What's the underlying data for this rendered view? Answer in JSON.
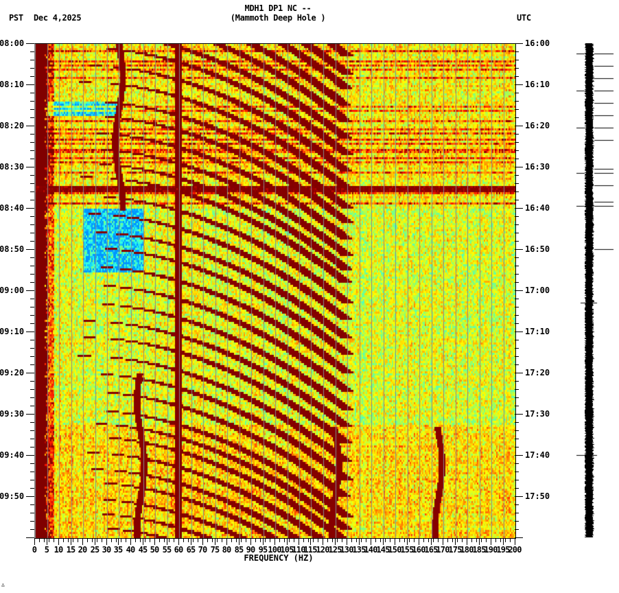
{
  "header": {
    "title_line1": "MDH1 DP1 NC --",
    "title_line2": "(Mammoth Deep Hole )",
    "tz_left": "PST",
    "date": "Dec 4,2025",
    "tz_right": "UTC"
  },
  "footer": {
    "mark": "∴"
  },
  "colors": {
    "low": "#00a0ff",
    "cyan": "#33ffee",
    "green": "#99ff66",
    "yellow": "#ffff00",
    "orange": "#ff9900",
    "red": "#ff1100",
    "high": "#800000",
    "gridline": "#888888"
  },
  "chart_data": {
    "type": "heatmap",
    "title": "MDH1 DP1 NC -- (Mammoth Deep Hole )",
    "subtitle": "Dec 4,2025",
    "xlabel": "FREQUENCY (HZ)",
    "ylabel_left": "PST",
    "ylabel_right": "UTC",
    "xlim": [
      0,
      200
    ],
    "x_ticks": [
      0,
      5,
      10,
      15,
      20,
      25,
      30,
      35,
      40,
      45,
      50,
      55,
      60,
      65,
      70,
      75,
      80,
      85,
      90,
      95,
      100,
      105,
      110,
      115,
      120,
      125,
      130,
      135,
      140,
      145,
      150,
      155,
      160,
      165,
      170,
      175,
      180,
      185,
      190,
      195,
      200
    ],
    "y_ticks_left": [
      "08:00",
      "08:10",
      "08:20",
      "08:30",
      "08:40",
      "08:50",
      "09:00",
      "09:10",
      "09:20",
      "09:30",
      "09:40",
      "09:50"
    ],
    "y_ticks_right": [
      "16:00",
      "16:10",
      "16:20",
      "16:30",
      "16:40",
      "16:50",
      "17:00",
      "17:10",
      "17:20",
      "17:30",
      "17:40",
      "17:50"
    ],
    "time_range_minutes": 120,
    "colormap": "jet (blue=low power, dark red=high power)",
    "features": {
      "persistent_lines_hz": [
        59.5,
        60.5
      ],
      "low_freq_band_hz": [
        0,
        4
      ],
      "broadband_event_minutes": [
        34.5,
        35.5
      ],
      "sweeping_arcs": "repeating dark-red chirp arcs sweeping from ~20 Hz up to ~125 Hz, roughly every 2-5 minutes",
      "wandering_lines_hz": [
        {
          "center": 35,
          "start_min": 0,
          "end_min": 40
        },
        {
          "center": 44,
          "start_min": 80,
          "end_min": 120
        },
        {
          "center": 125,
          "start_min": 93,
          "end_min": 120
        },
        {
          "center": 168,
          "start_min": 93,
          "end_min": 120
        }
      ],
      "quiet_blue_patches": [
        {
          "hz": [
            5,
            35
          ],
          "minutes": [
            14,
            17
          ]
        },
        {
          "hz": [
            20,
            45
          ],
          "minutes": [
            40,
            55
          ]
        }
      ]
    },
    "seismogram_trace": {
      "position": "right",
      "spike_minutes": [
        2.5,
        5.5,
        8.5,
        11.5,
        14.5,
        17.5,
        20.5,
        23.5,
        30.5,
        31.5,
        34.5,
        38.5,
        39.5,
        50,
        63,
        100
      ]
    }
  }
}
